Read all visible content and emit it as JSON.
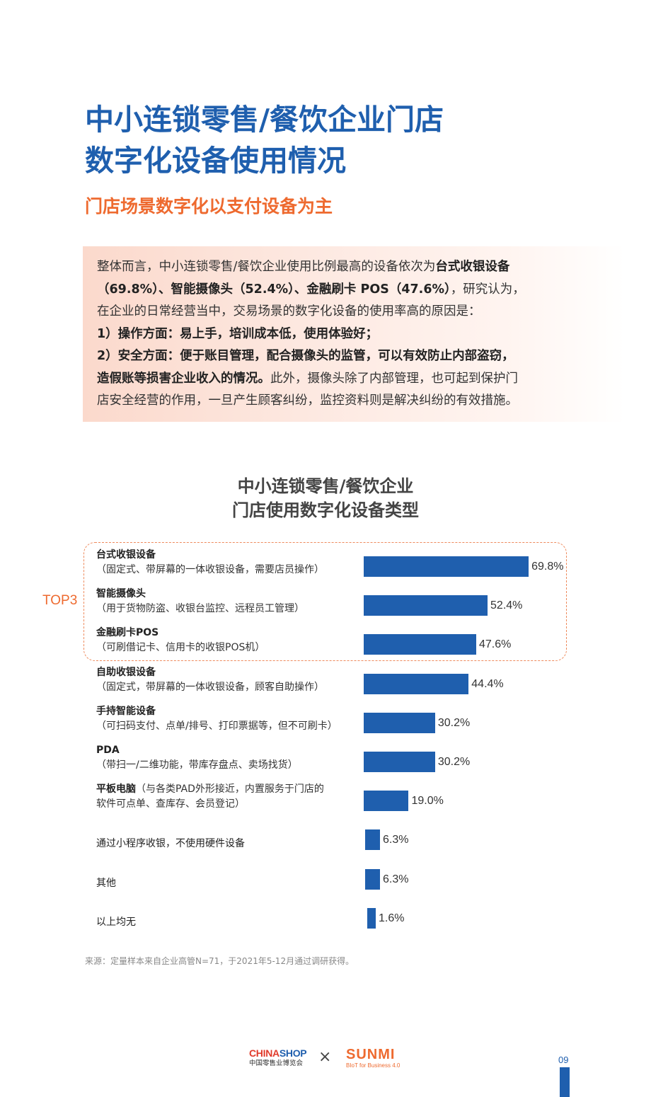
{
  "page": {
    "title_line1": "中小连锁零售/餐饮企业门店",
    "title_line2": "数字化设备使用情况",
    "subtitle": "门店场景数字化以支付设备为主",
    "intro": [
      [
        {
          "t": "整体而言，中小连锁零售/餐饮企业使用比例最高的设备依次为"
        },
        {
          "t": "台式收银设备",
          "b": true
        }
      ],
      [
        {
          "t": "（69.8%）、智能摄像头（52.4%）、金融刷卡 POS（47.6%）",
          "b": true
        },
        {
          "t": "，研究认为，"
        }
      ],
      [
        {
          "t": "在企业的日常经营当中，交易场景的数字化设备的使用率高的原因是："
        }
      ],
      [
        {
          "t": "1）操作方面：易上手，培训成本低，使用体验好；",
          "b": true
        }
      ],
      [
        {
          "t": "2）安全方面：便于账目管理，配合摄像头的监管，可以有效防止内部盗窃，",
          "b": true
        }
      ],
      [
        {
          "t": "造假账等损害企业收入的情况。",
          "b": true
        },
        {
          "t": "此外，摄像头除了内部管理，也可起到保护门"
        }
      ],
      [
        {
          "t": "店安全经营的作用，一旦产生顾客纠纷，监控资料则是解决纠纷的有效措施。"
        }
      ]
    ],
    "source": "来源：定量样本来自企业高管N=71，于2021年5-12月通过调研获得。",
    "page_number": "09",
    "logos": {
      "chinashop_a": "CHINA",
      "chinashop_b": "SHOP",
      "chinashop_sub": "中国零售业博览会",
      "cross": "×",
      "sunmi": "SUNMI",
      "sunmi_sub": "BIoT for Business 4.0"
    }
  },
  "chart_data": {
    "type": "bar",
    "orientation": "horizontal",
    "title_line1": "中小连锁零售/餐饮企业",
    "title_line2": "门店使用数字化设备类型",
    "annotation": "TOP3",
    "unit": "%",
    "xlim": [
      0,
      100
    ],
    "color": "#1f5fae",
    "categories": [
      {
        "name": "台式收银设备",
        "desc": "（固定式、带屏幕的一体收银设备，需要店员操作）",
        "value": 69.8
      },
      {
        "name": "智能摄像头",
        "desc": "（用于货物防盗、收银台监控、远程员工管理）",
        "value": 52.4
      },
      {
        "name": "金融刷卡POS",
        "desc": "（可刷借记卡、信用卡的收银POS机）",
        "value": 47.6
      },
      {
        "name": "自助收银设备",
        "desc": "（固定式，带屏幕的一体收银设备，顾客自助操作）",
        "value": 44.4
      },
      {
        "name": "手持智能设备",
        "desc": "（可扫码支付、点单/排号、打印票据等，但不可刷卡）",
        "value": 30.2
      },
      {
        "name": "PDA",
        "desc": "（带扫一/二维功能，带库存盘点、卖场找货）",
        "value": 30.2
      },
      {
        "name": "平板电脑",
        "inline": "（与各类PAD外形接近，内置服务于门店的",
        "desc": "软件可点单、查库存、会员登记）",
        "value": 19.0
      },
      {
        "name": "通过小程序收银，不使用硬件设备",
        "plain": true,
        "value": 6.3
      },
      {
        "name": "其他",
        "plain": true,
        "value": 6.3
      },
      {
        "name": "以上均无",
        "plain": true,
        "value": 1.6
      }
    ],
    "value_labels": [
      "69.8%",
      "52.4%",
      "47.6%",
      "44.4%",
      "30.2%",
      "30.2%",
      "19.0%",
      "6.3%",
      "6.3%",
      "1.6%"
    ]
  }
}
